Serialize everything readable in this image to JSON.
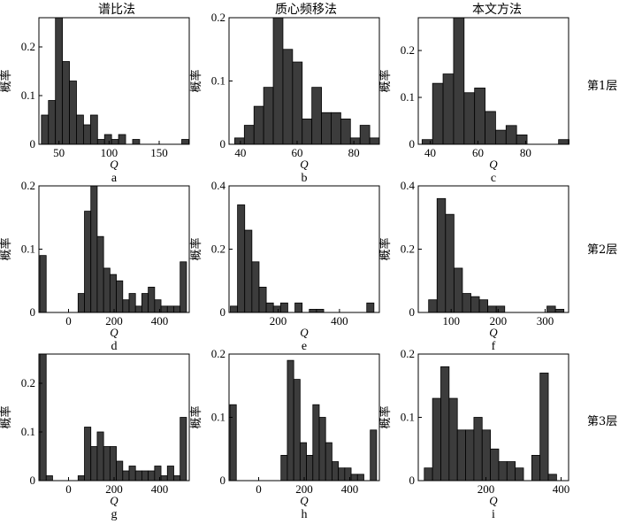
{
  "column_titles": [
    "谱比法",
    "质心频移法",
    "本文方法"
  ],
  "row_labels": [
    "第1层",
    "第2层",
    "第3层"
  ],
  "chart_data": [
    {
      "type": "bar",
      "panel": "a",
      "method": "谱比法",
      "layer": "第1层",
      "xlabel": "Q",
      "ylabel": "概率",
      "xlim": [
        30,
        180
      ],
      "ylim": [
        0,
        0.26
      ],
      "xticks": [
        50,
        100,
        150
      ],
      "yticks": [
        0,
        0.1,
        0.2
      ],
      "bin_width": 7,
      "bin_centers": [
        36,
        43,
        50,
        57,
        64,
        71,
        78,
        85,
        92,
        99,
        106,
        113,
        120,
        127,
        134,
        141,
        148,
        155,
        162,
        169,
        176
      ],
      "values": [
        0.06,
        0.09,
        0.26,
        0.17,
        0.13,
        0.06,
        0.04,
        0.06,
        0.01,
        0.02,
        0.01,
        0.02,
        0,
        0.01,
        0,
        0,
        0,
        0,
        0,
        0,
        0.01
      ]
    },
    {
      "type": "bar",
      "panel": "b",
      "method": "质心频移法",
      "layer": "第1层",
      "xlabel": "Q",
      "ylabel": "概率",
      "xlim": [
        36,
        89
      ],
      "ylim": [
        0,
        0.2
      ],
      "xticks": [
        40,
        60,
        80
      ],
      "yticks": [
        0,
        0.1,
        0.2
      ],
      "bin_width": 3.4,
      "bin_centers": [
        39.7,
        43.1,
        46.5,
        49.9,
        53.3,
        56.7,
        60.1,
        63.5,
        66.9,
        70.3,
        73.7,
        77.1,
        80.5,
        83.9,
        87.3
      ],
      "values": [
        0.01,
        0.03,
        0.06,
        0.09,
        0.2,
        0.15,
        0.13,
        0.04,
        0.09,
        0.05,
        0.05,
        0.04,
        0.01,
        0.03,
        0.01
      ]
    },
    {
      "type": "bar",
      "panel": "c",
      "method": "本文方法",
      "layer": "第1层",
      "xlabel": "Q",
      "ylabel": "概率",
      "xlim": [
        35,
        98
      ],
      "ylim": [
        0,
        0.27
      ],
      "xticks": [
        40,
        60,
        80
      ],
      "yticks": [
        0,
        0.1,
        0.2
      ],
      "bin_width": 4.4,
      "bin_centers": [
        38.8,
        43.2,
        47.6,
        52,
        56.4,
        60.8,
        65.2,
        69.6,
        74,
        78.4,
        82.8,
        87.2,
        91.6,
        96
      ],
      "values": [
        0.01,
        0.13,
        0.15,
        0.27,
        0.11,
        0.12,
        0.07,
        0.03,
        0.04,
        0.02,
        0,
        0,
        0,
        0.01
      ]
    },
    {
      "type": "bar",
      "panel": "d",
      "method": "谱比法",
      "layer": "第2层",
      "xlabel": "Q",
      "ylabel": "概率",
      "xlim": [
        -130,
        530
      ],
      "ylim": [
        0,
        0.2
      ],
      "xticks": [
        0,
        200,
        400
      ],
      "yticks": [
        0,
        0.1,
        0.2
      ],
      "bin_width": 28,
      "bin_centers": [
        -112,
        -84,
        -56,
        -28,
        0,
        28,
        56,
        84,
        112,
        140,
        168,
        196,
        224,
        252,
        280,
        308,
        336,
        364,
        392,
        420,
        448,
        476,
        504
      ],
      "values": [
        0.09,
        0,
        0,
        0,
        0,
        0,
        0.03,
        0.16,
        0.2,
        0.12,
        0.07,
        0.06,
        0.05,
        0.02,
        0.03,
        0.01,
        0.03,
        0.04,
        0.02,
        0.01,
        0.01,
        0.01,
        0.08
      ]
    },
    {
      "type": "bar",
      "panel": "e",
      "method": "质心频移法",
      "layer": "第2层",
      "xlabel": "Q",
      "ylabel": "概率",
      "xlim": [
        40,
        530
      ],
      "ylim": [
        0,
        0.4
      ],
      "xticks": [
        200,
        400
      ],
      "yticks": [
        0,
        0.2,
        0.4
      ],
      "bin_width": 23.4,
      "bin_centers": [
        56,
        79.4,
        102.8,
        126.2,
        149.6,
        173,
        196.4,
        219.8,
        243.2,
        266.6,
        290,
        313.4,
        336.8,
        360.2,
        383.6,
        407,
        430.4,
        453.8,
        477.2,
        500.6
      ],
      "values": [
        0.02,
        0.34,
        0.26,
        0.16,
        0.08,
        0.03,
        0.02,
        0.03,
        0,
        0.03,
        0,
        0.01,
        0.01,
        0,
        0,
        0,
        0,
        0,
        0,
        0.03
      ]
    },
    {
      "type": "bar",
      "panel": "f",
      "method": "本文方法",
      "layer": "第2层",
      "xlabel": "Q",
      "ylabel": "概率",
      "xlim": [
        30,
        350
      ],
      "ylim": [
        0,
        0.4
      ],
      "xticks": [
        100,
        200,
        300
      ],
      "yticks": [
        0,
        0.2,
        0.4
      ],
      "bin_width": 18,
      "bin_centers": [
        61,
        79,
        97,
        115,
        133,
        151,
        169,
        187,
        205,
        223,
        241,
        259,
        277,
        295,
        313,
        331
      ],
      "values": [
        0.04,
        0.36,
        0.31,
        0.14,
        0.06,
        0.05,
        0.04,
        0.02,
        0.02,
        0,
        0,
        0,
        0,
        0,
        0.02,
        0.01
      ]
    },
    {
      "type": "bar",
      "panel": "g",
      "method": "谱比法",
      "layer": "第3层",
      "xlabel": "Q",
      "ylabel": "概率",
      "xlim": [
        -130,
        530
      ],
      "ylim": [
        0,
        0.26
      ],
      "xticks": [
        0,
        200,
        400
      ],
      "yticks": [
        0,
        0.1,
        0.2
      ],
      "bin_width": 28,
      "bin_centers": [
        -112,
        -84,
        -56,
        -28,
        0,
        28,
        56,
        84,
        112,
        140,
        168,
        196,
        224,
        252,
        280,
        308,
        336,
        364,
        392,
        420,
        448,
        476,
        504
      ],
      "values": [
        0.26,
        0.01,
        0,
        0,
        0,
        0,
        0.01,
        0.11,
        0.07,
        0.1,
        0.07,
        0.07,
        0.04,
        0.02,
        0.03,
        0.02,
        0.02,
        0.02,
        0.03,
        0.01,
        0.03,
        0.01,
        0.13
      ]
    },
    {
      "type": "bar",
      "panel": "h",
      "method": "质心频移法",
      "layer": "第3层",
      "xlabel": "Q",
      "ylabel": "概率",
      "xlim": [
        -130,
        530
      ],
      "ylim": [
        0,
        0.2
      ],
      "xticks": [
        0,
        200,
        400
      ],
      "yticks": [
        0,
        0.1,
        0.2
      ],
      "bin_width": 28,
      "bin_centers": [
        -112,
        -84,
        -56,
        -28,
        0,
        28,
        56,
        84,
        112,
        140,
        168,
        196,
        224,
        252,
        280,
        308,
        336,
        364,
        392,
        420,
        448,
        476,
        504
      ],
      "values": [
        0.12,
        0,
        0,
        0,
        0,
        0,
        0,
        0,
        0.04,
        0.19,
        0.16,
        0.06,
        0.04,
        0.12,
        0.1,
        0.06,
        0.03,
        0.02,
        0.02,
        0.01,
        0.01,
        0,
        0.08
      ]
    },
    {
      "type": "bar",
      "panel": "i",
      "method": "本文方法",
      "layer": "第3层",
      "xlabel": "Q",
      "ylabel": "概率",
      "xlim": [
        20,
        420
      ],
      "ylim": [
        0,
        0.2
      ],
      "xticks": [
        200,
        400
      ],
      "yticks": [
        0,
        0.1,
        0.2
      ],
      "bin_width": 22,
      "bin_centers": [
        47,
        69,
        91,
        113,
        135,
        157,
        179,
        201,
        223,
        245,
        267,
        289,
        311,
        333,
        355,
        377
      ],
      "values": [
        0.02,
        0.13,
        0.18,
        0.13,
        0.08,
        0.08,
        0.1,
        0.08,
        0.05,
        0.03,
        0.03,
        0.02,
        0,
        0.04,
        0.17,
        0.01
      ]
    }
  ]
}
